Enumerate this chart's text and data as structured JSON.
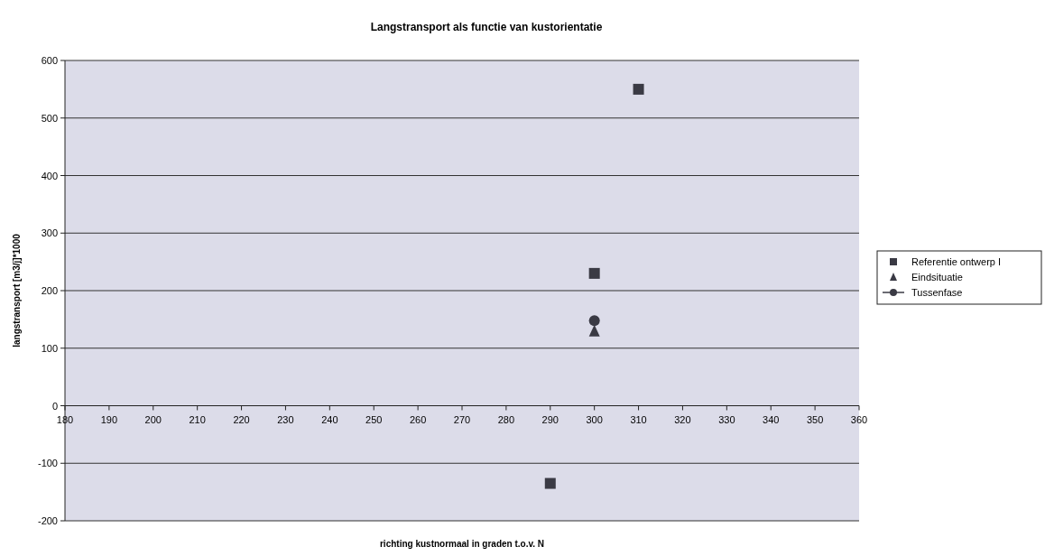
{
  "chart_data": {
    "type": "scatter",
    "title": "Langstransport als functie van kustorientatie",
    "xlabel": "richting kustnormaal in graden t.o.v. N",
    "ylabel": "langstransport [m3/j]*1000",
    "xlim": [
      180,
      360
    ],
    "xticks": [
      180,
      190,
      200,
      210,
      220,
      230,
      240,
      250,
      260,
      270,
      280,
      290,
      300,
      310,
      320,
      330,
      340,
      350,
      360
    ],
    "ylim": [
      -200,
      600
    ],
    "yticks": [
      -200,
      -100,
      0,
      100,
      200,
      300,
      400,
      500,
      600
    ],
    "grid": "y",
    "legend": "right",
    "series": [
      {
        "name": "Referentie ontwerp I",
        "color": "#3a3a44",
        "marker": "square",
        "x": [
          290,
          300,
          310
        ],
        "values": [
          -135,
          230,
          550
        ]
      },
      {
        "name": "Eindsituatie",
        "color": "#3a3a44",
        "marker": "triangle",
        "x": [
          300
        ],
        "values": [
          130
        ]
      },
      {
        "name": "Tussenfase",
        "type": "line",
        "color": "#3a3a44",
        "marker": "circle",
        "line_style": "solid",
        "x": [
          300
        ],
        "values": [
          148
        ]
      }
    ]
  }
}
